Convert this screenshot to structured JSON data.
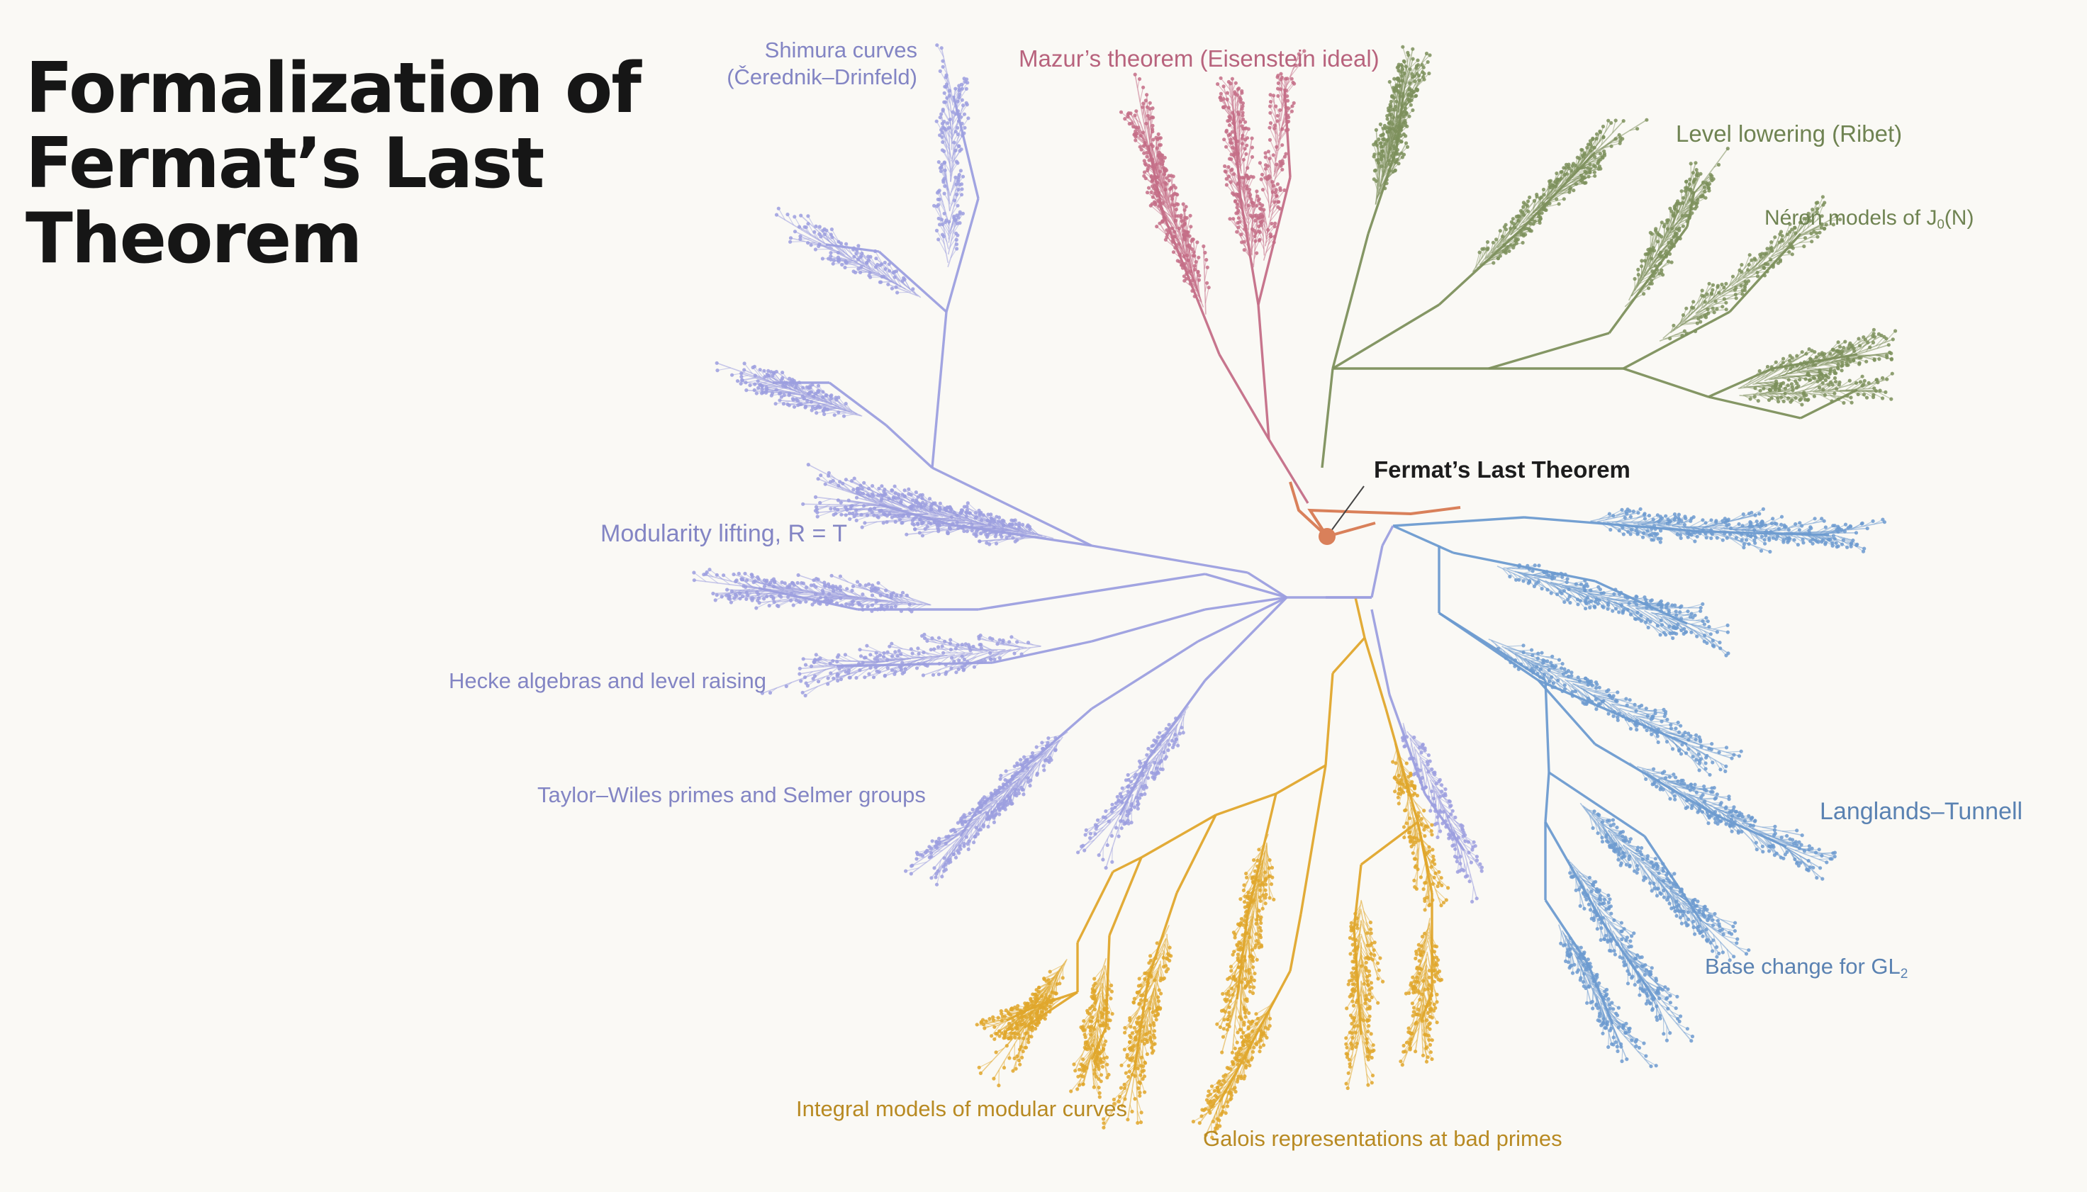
{
  "title": "Formalization of\nFermat’s Last\nTheorem",
  "root": {
    "label": "Fermat’s Last Theorem",
    "color": "#d9805a"
  },
  "colors": {
    "lavender": "#9c9fdf",
    "rose": "#c46e87",
    "olive": "#7d905c",
    "blue": "#6d9bd0",
    "gold": "#e0a72c",
    "label_lavender": "#8385c4",
    "label_rose": "#b8637d",
    "label_olive": "#6f8352",
    "label_blue": "#5a82b2",
    "label_gold": "#b88a22"
  },
  "labels": {
    "shimura_line1": "Shimura curves",
    "shimura_line2": "(Čerednik–Drinfeld)",
    "mazur": "Mazur’s theorem (Eisenstein ideal)",
    "level_lowering": "Level lowering (Ribet)",
    "neron_prefix": "Néron models of J",
    "neron_sub": "0",
    "neron_suffix": "(N)",
    "modularity": "Modularity lifting, R = T",
    "hecke": "Hecke algebras and level raising",
    "taylor_wiles": "Taylor–Wiles primes and Selmer groups",
    "langlands": "Langlands–Tunnell",
    "base_change_prefix": "Base change for GL",
    "base_change_sub": "2",
    "integral_models": "Integral models of modular curves",
    "galois": "Galois representations at bad primes"
  }
}
